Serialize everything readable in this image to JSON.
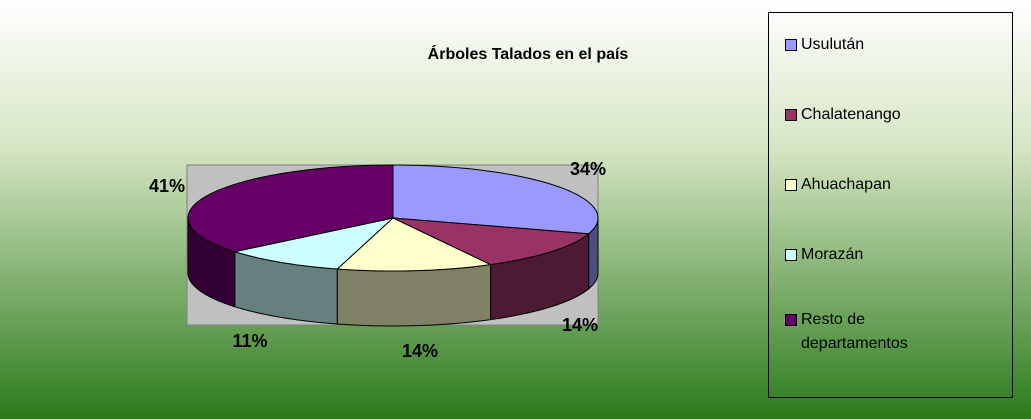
{
  "chart_data": {
    "type": "pie3d",
    "title": "Árboles Talados en el país",
    "categories": [
      "Usulután",
      "Chalatenango",
      "Ahuachapan",
      "Morazán",
      "Resto de departamentos"
    ],
    "values": [
      34,
      14,
      14,
      11,
      41
    ],
    "value_labels": [
      "34%",
      "14%",
      "14%",
      "11%",
      "41%"
    ],
    "colors": [
      "#9999ff",
      "#993366",
      "#ffffcc",
      "#ccffff",
      "#660066"
    ],
    "legend": "right"
  }
}
